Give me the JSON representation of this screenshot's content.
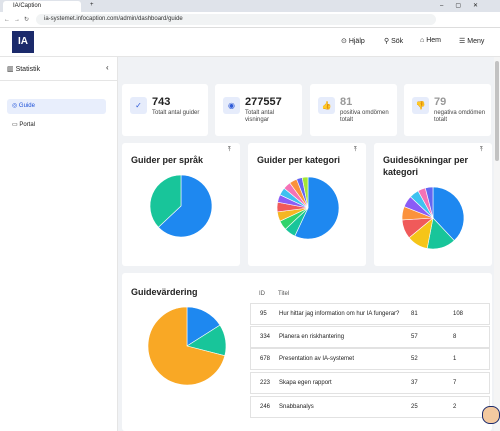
{
  "browser": {
    "tab": "IA/Caption",
    "url": "ia-systemet.infocaption.com/admin/dashboard/guide"
  },
  "header": {
    "logo": "IA",
    "nav": [
      "Hjälp",
      "Sök",
      "Hem",
      "Meny"
    ]
  },
  "sidebar": {
    "title": "Statistik",
    "items": [
      "Guide",
      "Portal"
    ]
  },
  "stats": [
    {
      "value": 743,
      "label": "Totalt antal guider"
    },
    {
      "value": 277557,
      "label": "Totalt antal visningar"
    },
    {
      "value": 81,
      "label": "positiva omdömen totalt"
    },
    {
      "value": 79,
      "label": "negativa omdömen totalt"
    }
  ],
  "charts": [
    {
      "title": "Guider per språk",
      "values": [
        63,
        37
      ],
      "colors": [
        "#1e88f0",
        "#18c59a"
      ]
    },
    {
      "title": "Guider per kategori",
      "values": [
        57,
        6,
        5,
        5,
        5,
        4,
        4,
        4,
        4,
        3,
        3
      ],
      "colors": [
        "#1e88f0",
        "#18c59a",
        "#2fd36b",
        "#f5b622",
        "#f05a5a",
        "#8b5cf6",
        "#3ec1f0",
        "#f472b6",
        "#fb923c",
        "#6366f1",
        "#a3e635"
      ]
    },
    {
      "title": "Guidesökningar per kategori",
      "values": [
        38,
        15,
        11,
        10,
        7,
        6,
        5,
        4,
        4
      ],
      "colors": [
        "#1e88f0",
        "#18c59a",
        "#f5c518",
        "#f05a5a",
        "#fb923c",
        "#8b5cf6",
        "#3ec1f0",
        "#f472b6",
        "#6366f1"
      ]
    },
    {
      "title": "Guidevärdering",
      "values": [
        16,
        13,
        71
      ],
      "colors": [
        "#1e88f0",
        "#18c59a",
        "#f9a825"
      ]
    }
  ],
  "table": {
    "header": [
      "ID",
      "Titel"
    ],
    "rows": [
      [
        95,
        "Hur hittar jag information om hur IA fungerar?",
        81,
        108
      ],
      [
        334,
        "Planera en riskhantering",
        57,
        8
      ],
      [
        678,
        "Presentation av IA-systemet",
        52,
        1
      ],
      [
        223,
        "Skapa egen rapport",
        37,
        7
      ],
      [
        246,
        "Snabbanalys",
        25,
        2
      ]
    ]
  }
}
